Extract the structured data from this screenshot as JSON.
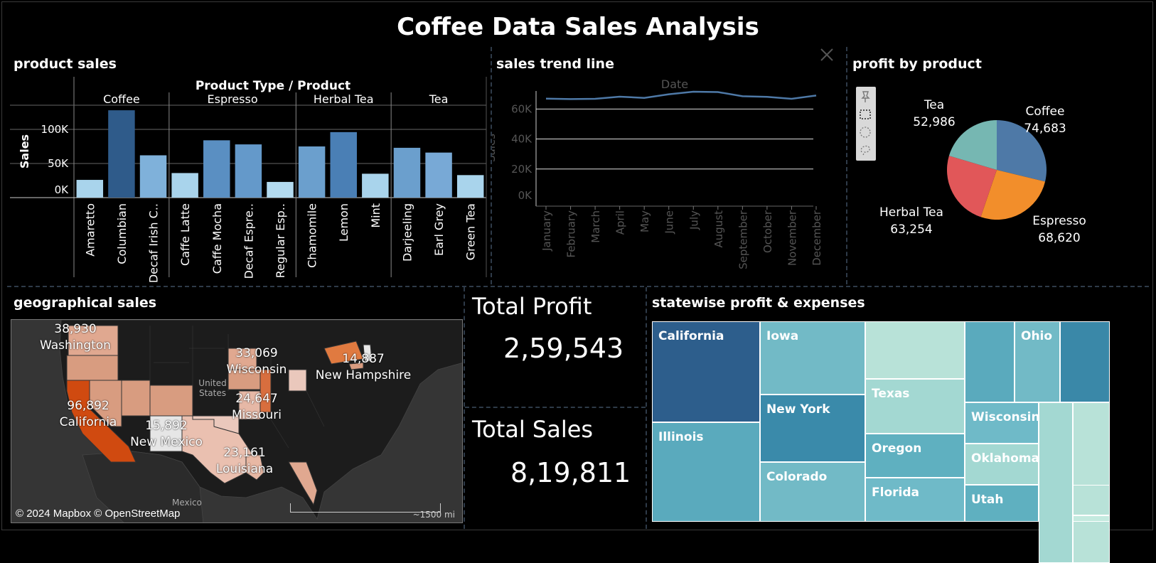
{
  "title": "Coffee Data Sales Analysis",
  "panels": {
    "product_sales": "product sales",
    "sales_trend": "sales trend line",
    "profit_by_product": "profit by product",
    "geographical_sales": "geographical sales",
    "statewise": "statewise profit & expenses"
  },
  "kpis": {
    "total_profit_label": "Total Profit",
    "total_profit_value": "2,59,543",
    "total_sales_label": "Total Sales",
    "total_sales_value": "8,19,811"
  },
  "icons": {
    "close": "close-icon",
    "pin": "pin-icon",
    "rect_select": "rect-select-icon",
    "radial_select": "radial-select-icon",
    "lasso_select": "lasso-select-icon"
  },
  "chart_data": [
    {
      "type": "bar",
      "header": "Product Type  /  Product",
      "ylabel": "Sales",
      "yticks": [
        "0K",
        "50K",
        "100K"
      ],
      "ylim": [
        0,
        125000
      ],
      "groups": [
        {
          "name": "Coffee",
          "products": [
            {
              "name": "Amaretto",
              "value": 26000,
              "color": "#a9d4ec"
            },
            {
              "name": "Columbian",
              "value": 128000,
              "color": "#2f5b8a"
            },
            {
              "name": "Decaf Irish C..",
              "value": 62000,
              "color": "#7fb1da"
            }
          ]
        },
        {
          "name": "Espresso",
          "products": [
            {
              "name": "Caffe Latte",
              "value": 36000,
              "color": "#a9d4ec"
            },
            {
              "name": "Caffe Mocha",
              "value": 84000,
              "color": "#5a8fc2"
            },
            {
              "name": "Decaf Espre..",
              "value": 78000,
              "color": "#6499ca"
            },
            {
              "name": "Regular Esp..",
              "value": 23000,
              "color": "#b3dbf0"
            }
          ]
        },
        {
          "name": "Herbal Tea",
          "products": [
            {
              "name": "Chamomile",
              "value": 75000,
              "color": "#6b9fcd"
            },
            {
              "name": "Lemon",
              "value": 96000,
              "color": "#4a7fb5"
            },
            {
              "name": "Mint",
              "value": 35000,
              "color": "#a9d4ec"
            }
          ]
        },
        {
          "name": "Tea",
          "products": [
            {
              "name": "Darjeeling",
              "value": 73000,
              "color": "#6b9fcd"
            },
            {
              "name": "Earl Grey",
              "value": 66000,
              "color": "#78a9d6"
            },
            {
              "name": "Green Tea",
              "value": 33000,
              "color": "#a9d4ec"
            }
          ]
        }
      ]
    },
    {
      "type": "line",
      "xlabel": "Date",
      "ylabel": "Sales",
      "yticks": [
        "0K",
        "20K",
        "40K",
        "60K"
      ],
      "ylim": [
        0,
        72000
      ],
      "x": [
        "January",
        "February",
        "March",
        "April",
        "May",
        "June",
        "July",
        "August",
        "September",
        "October",
        "November",
        "December"
      ],
      "values": [
        66900,
        66600,
        66800,
        68200,
        67400,
        69800,
        71500,
        71300,
        68500,
        68100,
        66800,
        69000
      ],
      "color": "#4e79a7"
    },
    {
      "type": "pie",
      "series": [
        {
          "name": "Coffee",
          "value": "74,683",
          "num": 74683,
          "color": "#4e79a7"
        },
        {
          "name": "Espresso",
          "value": "68,620",
          "num": 68620,
          "color": "#f28e2b"
        },
        {
          "name": "Herbal Tea",
          "value": "63,254",
          "num": 63254,
          "color": "#e15759"
        },
        {
          "name": "Tea",
          "value": "52,986",
          "num": 52986,
          "color": "#76b7b2"
        }
      ]
    },
    {
      "type": "map",
      "labels": [
        {
          "name": "Washington",
          "value": "38,930"
        },
        {
          "name": "Wisconsin",
          "value": "33,069"
        },
        {
          "name": "New Hampshire",
          "value": "14,887"
        },
        {
          "name": "California",
          "value": "96,892"
        },
        {
          "name": "Missouri",
          "value": "24,647"
        },
        {
          "name": "New Mexico",
          "value": "15,892"
        },
        {
          "name": "Louisiana",
          "value": "23,161"
        }
      ],
      "country_label": "United States",
      "mexico_label": "Mexico",
      "credit": "© 2024 Mapbox © OpenStreetMap",
      "scale": "~1500 mi"
    },
    {
      "type": "treemap",
      "cells": [
        {
          "name": "California",
          "color": "#2d5e8c"
        },
        {
          "name": "Illinois",
          "color": "#5aaabd"
        },
        {
          "name": "Iowa",
          "color": "#72bac6"
        },
        {
          "name": "New York",
          "color": "#3a8aaa"
        },
        {
          "name": "Colorado",
          "color": "#72bac6"
        },
        {
          "name": "",
          "color": "#b8e2d8"
        },
        {
          "name": "Texas",
          "color": "#a3d8d2"
        },
        {
          "name": "Oregon",
          "color": "#5fb0c0"
        },
        {
          "name": "Florida",
          "color": "#6fbac8"
        },
        {
          "name": "",
          "color": "#5aaabd"
        },
        {
          "name": "Ohio",
          "color": "#72bac6"
        },
        {
          "name": "",
          "color": "#3a88a8"
        },
        {
          "name": "Wisconsin",
          "color": "#6fbac8"
        },
        {
          "name": "Oklahoma",
          "color": "#a3d8d2"
        },
        {
          "name": "Utah",
          "color": "#5fb0c0"
        },
        {
          "name": "",
          "color": "#a3d8d2"
        },
        {
          "name": "",
          "color": "#b8e2d8"
        },
        {
          "name": "",
          "color": "#a3d8d2"
        },
        {
          "name": "",
          "color": "#b8e2d8"
        },
        {
          "name": "",
          "color": "#c4eadf"
        }
      ]
    }
  ]
}
